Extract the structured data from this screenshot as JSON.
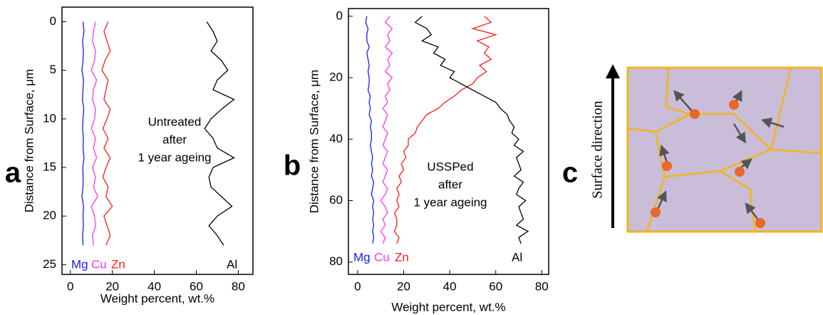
{
  "chart_data": [
    {
      "type": "line",
      "panel_label": "a",
      "xlabel": "Weight percent, wt.%",
      "ylabel": "Distance from Surface, μm",
      "annotation": [
        "Untreated",
        "after",
        "1 year ageing"
      ],
      "y": [
        0,
        1,
        2,
        3,
        4,
        5,
        6,
        7,
        8,
        9,
        10,
        11,
        12,
        13,
        14,
        15,
        16,
        17,
        18,
        19,
        20,
        21,
        22,
        23
      ],
      "series": [
        {
          "name": "Mg",
          "color": "#1a1aff",
          "values": [
            6,
            6.5,
            5.8,
            6.2,
            6,
            5.5,
            6.3,
            6,
            5.7,
            6.4,
            6,
            5.8,
            6.2,
            6,
            6.5,
            5.9,
            6.1,
            6,
            5.5,
            6.3,
            6,
            6.2,
            5.8,
            6
          ]
        },
        {
          "name": "Cu",
          "color": "#ff33ff",
          "values": [
            12,
            11,
            10.5,
            12,
            11.5,
            10,
            12.5,
            11,
            10.5,
            12,
            11.5,
            10,
            12,
            11,
            12.5,
            10.5,
            12,
            11,
            13,
            10,
            11.5,
            12,
            10.5,
            11
          ]
        },
        {
          "name": "Zn",
          "color": "#ff1a1a",
          "values": [
            18,
            16,
            17.5,
            19,
            16.5,
            15,
            18,
            17,
            16,
            19,
            17.5,
            15.5,
            18,
            16,
            19,
            17,
            15.5,
            18,
            17,
            20,
            16,
            17.5,
            19,
            17
          ]
        },
        {
          "name": "Al",
          "color": "#000000",
          "values": [
            65,
            68,
            70,
            67,
            72,
            75,
            70,
            68,
            78,
            72,
            67,
            64,
            68,
            70,
            78,
            68,
            66,
            67,
            72,
            77,
            70,
            66,
            70,
            73
          ]
        }
      ],
      "xlim": [
        -4,
        87
      ],
      "xticks": [
        0,
        20,
        40,
        60,
        80
      ],
      "ylim": [
        -1.5,
        26
      ],
      "yticks": [
        0,
        5,
        10,
        15,
        20,
        25
      ],
      "y_inverted": true
    },
    {
      "type": "line",
      "panel_label": "b",
      "xlabel": "Weight percent, wt.%",
      "ylabel": "Distance from Surface, μm",
      "annotation": [
        "USSPed",
        "after",
        "1 year ageing"
      ],
      "y": [
        0,
        2,
        4,
        6,
        8,
        10,
        12,
        14,
        16,
        18,
        20,
        22,
        24,
        26,
        28,
        30,
        32,
        34,
        36,
        38,
        40,
        42,
        44,
        46,
        48,
        50,
        52,
        54,
        56,
        58,
        60,
        62,
        64,
        66,
        68,
        70,
        72,
        74
      ],
      "series": [
        {
          "name": "Mg",
          "color": "#1a1aff",
          "values": [
            4,
            3.5,
            4.5,
            4,
            4,
            5,
            4,
            4.5,
            5,
            4.5,
            5,
            5,
            4.5,
            5.5,
            5,
            5.5,
            5,
            6,
            5.5,
            6,
            6,
            5.5,
            6,
            6.5,
            6,
            6.5,
            6,
            7,
            6.5,
            6,
            7,
            6.5,
            7,
            6.5,
            7,
            6.5,
            7,
            6.5
          ]
        },
        {
          "name": "Cu",
          "color": "#ff33ff",
          "values": [
            14,
            12,
            15,
            13,
            14,
            12,
            15,
            13,
            14,
            12,
            15,
            13,
            14,
            12,
            13,
            11,
            13,
            12,
            11,
            13,
            12,
            11,
            13,
            12,
            11,
            13,
            12,
            11,
            13,
            12,
            10,
            12,
            13,
            11,
            12,
            10,
            12,
            11
          ]
        },
        {
          "name": "Zn",
          "color": "#ff1a1a",
          "values": [
            55,
            58,
            50,
            60,
            52,
            57,
            55,
            58,
            53,
            56,
            52,
            50,
            45,
            42,
            38,
            35,
            30,
            28,
            26,
            25,
            22,
            22,
            20,
            21,
            19,
            20,
            18,
            19,
            17,
            18,
            17,
            18,
            16,
            17,
            17,
            16,
            18,
            17
          ]
        },
        {
          "name": "Al",
          "color": "#000000",
          "values": [
            28,
            25,
            30,
            32,
            28,
            35,
            33,
            38,
            36,
            42,
            40,
            45,
            50,
            55,
            60,
            62,
            65,
            66,
            68,
            67,
            70,
            68,
            72,
            69,
            70,
            71,
            68,
            72,
            70,
            69,
            73,
            70,
            71,
            72,
            69,
            74,
            70,
            71
          ]
        }
      ],
      "xlim": [
        -4,
        83
      ],
      "xticks": [
        0,
        20,
        40,
        60,
        80
      ],
      "ylim": [
        -2.5,
        84
      ],
      "yticks": [
        0,
        20,
        40,
        60,
        80
      ],
      "y_inverted": true
    }
  ],
  "diagram": {
    "panel_label": "c",
    "axis_text": "Surface direction"
  }
}
